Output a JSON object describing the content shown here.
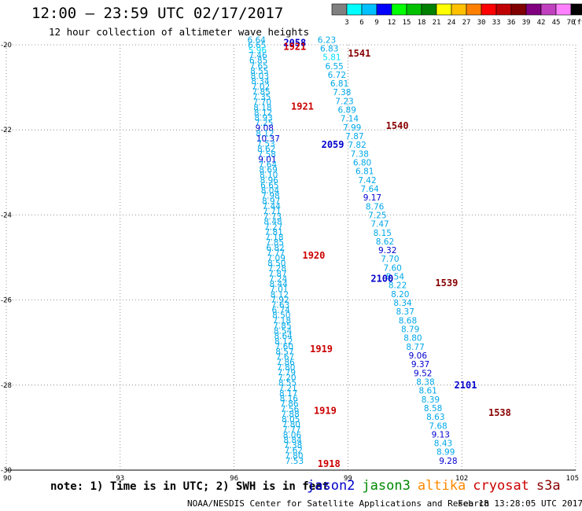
{
  "header": {
    "title": "12:00 — 23:59 UTC 02/17/2017",
    "subtitle": "12 hour collection of altimeter wave heights"
  },
  "colorbar": {
    "colors": [
      "#808080",
      "#00ffff",
      "#00c0ff",
      "#0000ff",
      "#00ff00",
      "#00c000",
      "#008000",
      "#ffff00",
      "#ffc000",
      "#ff8000",
      "#ff0000",
      "#c00000",
      "#800000",
      "#800080",
      "#c040c0",
      "#ff80ff",
      "#000000"
    ],
    "ticks": [
      "3",
      "6",
      "9",
      "12",
      "15",
      "18",
      "21",
      "24",
      "27",
      "30",
      "33",
      "36",
      "39",
      "42",
      "45",
      "70"
    ],
    "unit": "(ft)"
  },
  "chart_data": {
    "type": "scatter",
    "xlim": [
      90,
      105
    ],
    "ylim": [
      -30,
      -20
    ],
    "x_ticks": [
      "90",
      "93",
      "96",
      "99",
      "102",
      "105"
    ],
    "y_ticks": [
      "-20",
      "-22",
      "-24",
      "-26",
      "-28",
      "-30"
    ],
    "grid": true,
    "value_colors": {
      "<6": "#00e0ff",
      "6-9": "#00a8e8",
      "9-12": "#0000d0"
    },
    "time_label_colors": {
      "jason2": "#0000cc",
      "altika": "#cc0000",
      "cryosat": "#880000"
    },
    "tracks": [
      {
        "x_start": 96.35,
        "x_end": 97.35,
        "values": [
          "6.64",
          "6.65",
          "5.96",
          "7.46",
          "6.85",
          "7.65",
          "8.55",
          "8.03",
          "8.34",
          "7.02",
          "7.85",
          "7.35",
          "7.70",
          "8.18",
          "8.12",
          "8.93",
          "7.25",
          "9.08",
          "8.12",
          "10.37",
          "7.53",
          "8.62",
          "7.58",
          "9.01",
          "7.64",
          "8.69",
          "8.10",
          "8.96",
          "6.65",
          "8.04",
          "7.98",
          "8.97",
          "7.44",
          "7.71",
          "7.73",
          "8.48",
          "7.27",
          "7.81",
          "7.18",
          "7.85",
          "6.82",
          "7.77",
          "7.09",
          "8.50",
          "7.28",
          "7.87",
          "7.24",
          "8.44",
          "7.01",
          "8.12",
          "7.92",
          "7.63",
          "6.74",
          "8.50",
          "7.18",
          "7.85",
          "8.54",
          "8.64",
          "8.12",
          "7.60",
          "8.57",
          "7.67",
          "7.86",
          "7.80",
          "7.79",
          "7.20",
          "8.55",
          "7.21",
          "8.17",
          "8.16",
          "7.86",
          "7.56",
          "7.88",
          "8.05",
          "7.80",
          "7.77",
          "8.06",
          "8.84",
          "7.38",
          "7.62",
          "7.80",
          "7.53"
        ]
      },
      {
        "x_start": 98.2,
        "x_end": 101.4,
        "values": [
          "6.23",
          "6.83",
          "5.81",
          "6.55",
          "6.72",
          "6.81",
          "7.38",
          "7.23",
          "6.89",
          "7.14",
          "7.99",
          "7.87",
          "7.82",
          "7.38",
          "6.80",
          "6.81",
          "7.42",
          "7.64",
          "9.17",
          "8.76",
          "7.25",
          "7.47",
          "8.15",
          "8.62",
          "9.32",
          "7.70",
          "7.60",
          "8.54",
          "8.22",
          "8.20",
          "8.34",
          "8.37",
          "8.68",
          "8.79",
          "8.80",
          "8.77",
          "9.06",
          "9.37",
          "9.52",
          "8.38",
          "8.61",
          "8.39",
          "8.58",
          "8.63",
          "7.68",
          "9.13",
          "8.43",
          "8.99",
          "9.28"
        ]
      }
    ],
    "pass_labels": [
      {
        "text": "2058",
        "satellite": "jason2",
        "x": 97.3,
        "y": -19.95
      },
      {
        "text": "1921",
        "satellite": "altika",
        "x": 97.3,
        "y": -20.05
      },
      {
        "text": "1541",
        "satellite": "cryosat",
        "x": 99.0,
        "y": -20.2
      },
      {
        "text": "1921",
        "satellite": "altika",
        "x": 97.5,
        "y": -21.45
      },
      {
        "text": "1540",
        "satellite": "cryosat",
        "x": 100.0,
        "y": -21.9
      },
      {
        "text": "2059",
        "satellite": "jason2",
        "x": 98.3,
        "y": -22.35
      },
      {
        "text": "1920",
        "satellite": "altika",
        "x": 97.8,
        "y": -24.95
      },
      {
        "text": "2100",
        "satellite": "jason2",
        "x": 99.6,
        "y": -25.5
      },
      {
        "text": "1539",
        "satellite": "cryosat",
        "x": 101.3,
        "y": -25.6
      },
      {
        "text": "1919",
        "satellite": "altika",
        "x": 98.0,
        "y": -27.15
      },
      {
        "text": "2101",
        "satellite": "jason2",
        "x": 101.8,
        "y": -28.0
      },
      {
        "text": "1919",
        "satellite": "altika",
        "x": 98.1,
        "y": -28.6
      },
      {
        "text": "1538",
        "satellite": "cryosat",
        "x": 102.7,
        "y": -28.65
      },
      {
        "text": "1918",
        "satellite": "altika",
        "x": 98.2,
        "y": -29.85
      }
    ]
  },
  "note": "note: 1) Time is in UTC; 2) SWH is in feet",
  "satellites": [
    {
      "name": "jason2",
      "color": "#0000cc"
    },
    {
      "name": "jason3",
      "color": "#008800"
    },
    {
      "name": "altika",
      "color": "#ff8800"
    },
    {
      "name": "cryosat",
      "color": "#cc0000"
    },
    {
      "name": "s3a",
      "color": "#880000"
    }
  ],
  "footer": {
    "credit": "NOAA/NESDIS Center for Satellite Applications and Research",
    "timestamp": "Feb 18 13:28:05 UTC 2017"
  }
}
